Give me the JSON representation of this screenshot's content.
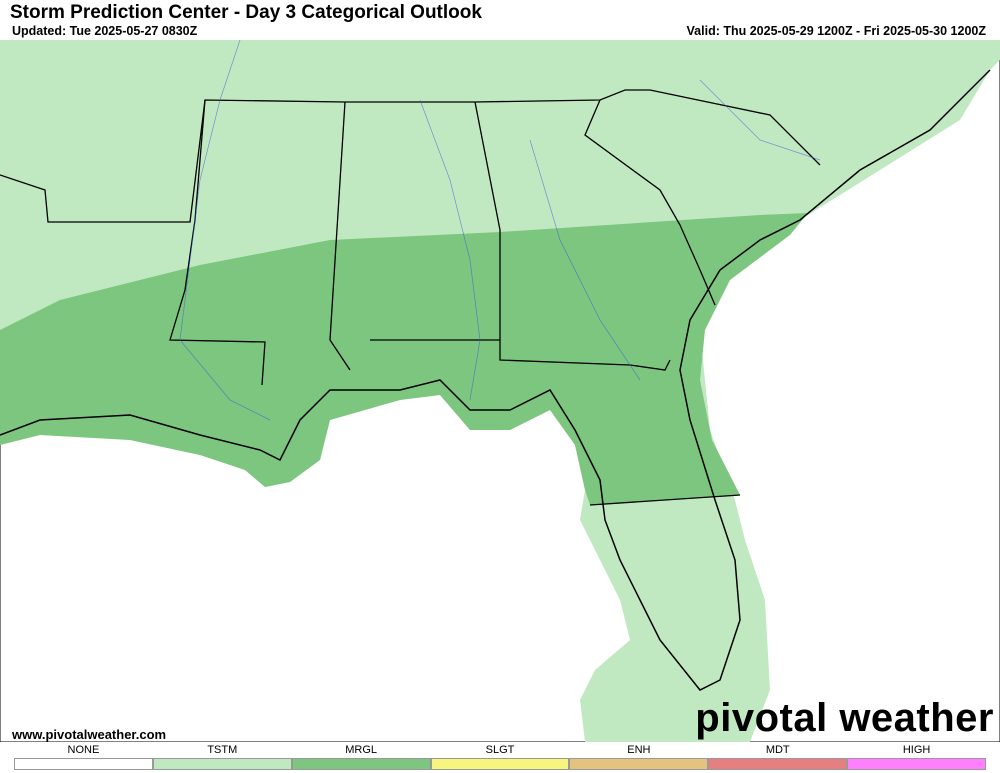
{
  "header": {
    "title": "Storm Prediction Center - Day 3 Categorical Outlook",
    "updated": "Updated: Tue 2025-05-27 0830Z",
    "valid": "Valid: Thu 2025-05-29 1200Z - Fri 2025-05-30 1200Z"
  },
  "footer": {
    "website": "www.pivotalweather.com",
    "brand": "pivotal weather"
  },
  "legend": [
    {
      "label": "NONE",
      "color": "#ffffff"
    },
    {
      "label": "TSTM",
      "color": "#c1e9c1"
    },
    {
      "label": "MRGL",
      "color": "#7dc67f"
    },
    {
      "label": "SLGT",
      "color": "#f6f67f"
    },
    {
      "label": "ENH",
      "color": "#e6c27f"
    },
    {
      "label": "MDT",
      "color": "#e67f7f"
    },
    {
      "label": "HIGH",
      "color": "#ff7fff"
    }
  ]
}
